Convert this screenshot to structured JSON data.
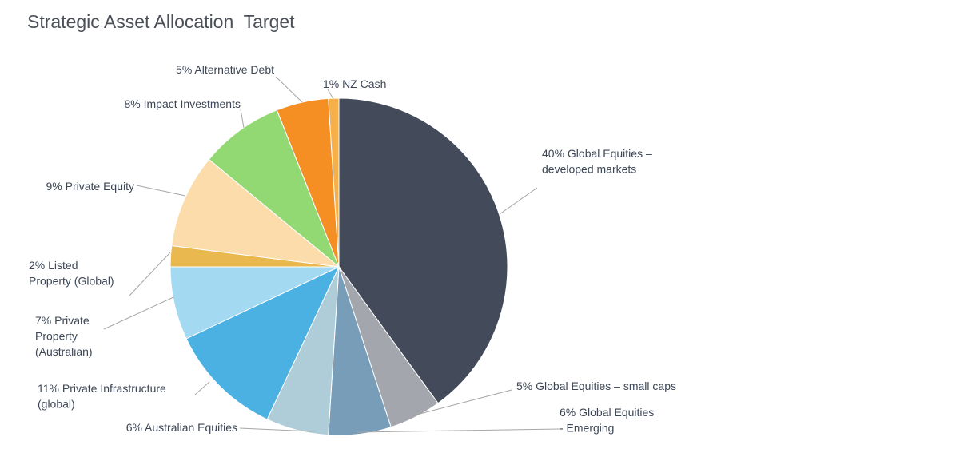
{
  "chart_data": {
    "type": "pie",
    "title": "Strategic Asset Allocation  Target",
    "start_angle_deg": 0,
    "direction": "clockwise",
    "legend": "none",
    "slices": [
      {
        "label": [
          "40% Global Equities –",
          "developed markets"
        ],
        "value": 40,
        "color": "#434b5b"
      },
      {
        "label": [
          "5% Global Equities – small caps"
        ],
        "value": 5,
        "color": "#a3a6ad"
      },
      {
        "label": [
          "6% Global Equities",
          "- Emerging"
        ],
        "value": 6,
        "color": "#789db8"
      },
      {
        "label": [
          "6% Australian Equities"
        ],
        "value": 6,
        "color": "#aecdd8"
      },
      {
        "label": [
          "11% Private Infrastructure",
          "(global)"
        ],
        "value": 11,
        "color": "#4bb1e3"
      },
      {
        "label": [
          "7% Private",
          "Property",
          "(Australian)"
        ],
        "value": 7,
        "color": "#a4d9f2"
      },
      {
        "label": [
          "2% Listed",
          "Property (Global)"
        ],
        "value": 2,
        "color": "#e9b84e"
      },
      {
        "label": [
          "9% Private Equity"
        ],
        "value": 9,
        "color": "#fbdcaa"
      },
      {
        "label": [
          "8% Impact Investments"
        ],
        "value": 8,
        "color": "#92d974"
      },
      {
        "label": [
          "5% Alternative Debt"
        ],
        "value": 5,
        "color": "#f58e23"
      },
      {
        "label": [
          "1% NZ Cash"
        ],
        "value": 1,
        "color": "#f5b04a"
      }
    ]
  }
}
